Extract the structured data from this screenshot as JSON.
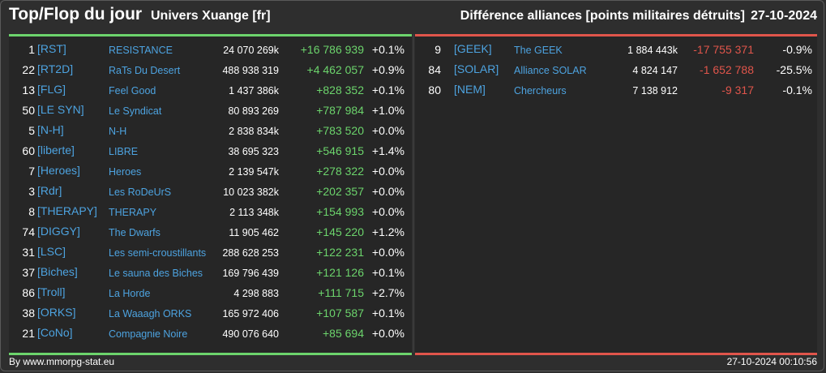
{
  "header": {
    "title": "Top/Flop du jour",
    "subtitle": "Univers Xuange [fr]",
    "right_title": "Différence alliances [points militaires détruits]",
    "date": "27-10-2024"
  },
  "top": [
    {
      "rank": "1",
      "tag": "[RST]",
      "name": "RESISTANCE",
      "points": "24 070 269k",
      "diff": "+16 786 939",
      "pct": "+0.1%"
    },
    {
      "rank": "22",
      "tag": "[RT2D]",
      "name": "RaTs Du Desert",
      "points": "488 938 319",
      "diff": "+4 462 057",
      "pct": "+0.9%"
    },
    {
      "rank": "13",
      "tag": "[FLG]",
      "name": "Feel Good",
      "points": "1 437 386k",
      "diff": "+828 352",
      "pct": "+0.1%"
    },
    {
      "rank": "50",
      "tag": "[LE SYN]",
      "name": "Le Syndicat",
      "points": "80 893 269",
      "diff": "+787 984",
      "pct": "+1.0%"
    },
    {
      "rank": "5",
      "tag": "[N-H]",
      "name": "N-H",
      "points": "2 838 834k",
      "diff": "+783 520",
      "pct": "+0.0%"
    },
    {
      "rank": "60",
      "tag": "[liberte]",
      "name": "LIBRE",
      "points": "38 695 323",
      "diff": "+546 915",
      "pct": "+1.4%"
    },
    {
      "rank": "7",
      "tag": "[Heroes]",
      "name": "Heroes",
      "points": "2 139 547k",
      "diff": "+278 322",
      "pct": "+0.0%"
    },
    {
      "rank": "3",
      "tag": "[Rdr]",
      "name": "Les RoDeUrS",
      "points": "10 023 382k",
      "diff": "+202 357",
      "pct": "+0.0%"
    },
    {
      "rank": "8",
      "tag": "[THERAPY]",
      "name": "THERAPY",
      "points": "2 113 348k",
      "diff": "+154 993",
      "pct": "+0.0%"
    },
    {
      "rank": "74",
      "tag": "[DIGGY]",
      "name": "The Dwarfs",
      "points": "11 905 462",
      "diff": "+145 220",
      "pct": "+1.2%"
    },
    {
      "rank": "31",
      "tag": "[LSC]",
      "name": "Les semi-croustillants",
      "points": "288 628 253",
      "diff": "+122 231",
      "pct": "+0.0%"
    },
    {
      "rank": "37",
      "tag": "[Biches]",
      "name": "Le sauna des Biches",
      "points": "169 796 439",
      "diff": "+121 126",
      "pct": "+0.1%"
    },
    {
      "rank": "86",
      "tag": "[Troll]",
      "name": "La Horde",
      "points": "4 298 883",
      "diff": "+111 715",
      "pct": "+2.7%"
    },
    {
      "rank": "38",
      "tag": "[ORKS]",
      "name": "La Waaagh ORKS",
      "points": "165 972 406",
      "diff": "+107 587",
      "pct": "+0.1%"
    },
    {
      "rank": "21",
      "tag": "[CoNo]",
      "name": "Compagnie Noire",
      "points": "490 076 640",
      "diff": "+85 694",
      "pct": "+0.0%"
    }
  ],
  "flop": [
    {
      "rank": "9",
      "tag": "[GEEK]",
      "name": "The GEEK",
      "points": "1 884 443k",
      "diff": "-17 755 371",
      "pct": "-0.9%"
    },
    {
      "rank": "84",
      "tag": "[SOLAR]",
      "name": "Alliance SOLAR",
      "points": "4 824 147",
      "diff": "-1 652 788",
      "pct": "-25.5%"
    },
    {
      "rank": "80",
      "tag": "[NEM]",
      "name": "Chercheurs",
      "points": "7 138 912",
      "diff": "-9 317",
      "pct": "-0.1%"
    }
  ],
  "footer": {
    "left": "By www.mmorpg-stat.eu",
    "right": "27-10-2024 00:10:56"
  },
  "colors": {
    "positive": "#6cd46c",
    "negative": "#e0554b",
    "link": "#4da3e0"
  }
}
